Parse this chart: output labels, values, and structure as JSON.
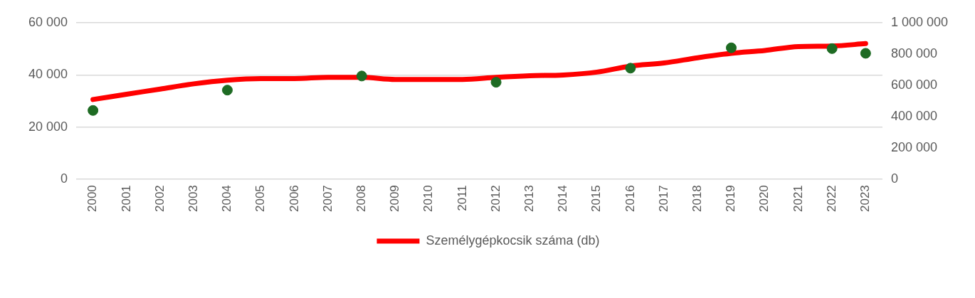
{
  "chart_data": {
    "type": "line",
    "categories": [
      "2000",
      "2001",
      "2002",
      "2003",
      "2004",
      "2005",
      "2006",
      "2007",
      "2008",
      "2009",
      "2010",
      "2011",
      "2012",
      "2013",
      "2014",
      "2015",
      "2016",
      "2017",
      "2018",
      "2019",
      "2020",
      "2021",
      "2022",
      "2023"
    ],
    "series": [
      {
        "name": "Személygépkocsik száma (db)",
        "color": "#ff0000",
        "marker": "none",
        "values": [
          30600,
          32600,
          34600,
          36600,
          38000,
          38600,
          38600,
          39100,
          39100,
          38300,
          38300,
          38300,
          39100,
          39700,
          40000,
          41100,
          43400,
          44600,
          46600,
          48300,
          49400,
          50900,
          51100,
          52000
        ]
      },
      {
        "type": "scatter",
        "axis": "y2",
        "color": "#1e6b23",
        "marker": "circle",
        "values": [
          440000,
          null,
          null,
          null,
          570000,
          null,
          null,
          null,
          660000,
          null,
          null,
          null,
          620000,
          null,
          null,
          null,
          710000,
          null,
          null,
          840000,
          null,
          null,
          835000,
          805000
        ]
      }
    ],
    "ylim": [
      0,
      60000
    ],
    "yticks": [
      {
        "value": 0,
        "label": "0"
      },
      {
        "value": 20000,
        "label": "20 000"
      },
      {
        "value": 40000,
        "label": "40 000"
      },
      {
        "value": 60000,
        "label": "60 000"
      }
    ],
    "y2lim": [
      0,
      1000000
    ],
    "y2ticks": [
      {
        "value": 0,
        "label": "0"
      },
      {
        "value": 200000,
        "label": "200 000"
      },
      {
        "value": 400000,
        "label": "400 000"
      },
      {
        "value": 600000,
        "label": "600 000"
      },
      {
        "value": 800000,
        "label": "800 000"
      },
      {
        "value": 1000000,
        "label": "1 000 000"
      }
    ],
    "grid": "y",
    "legend": "bottom"
  }
}
